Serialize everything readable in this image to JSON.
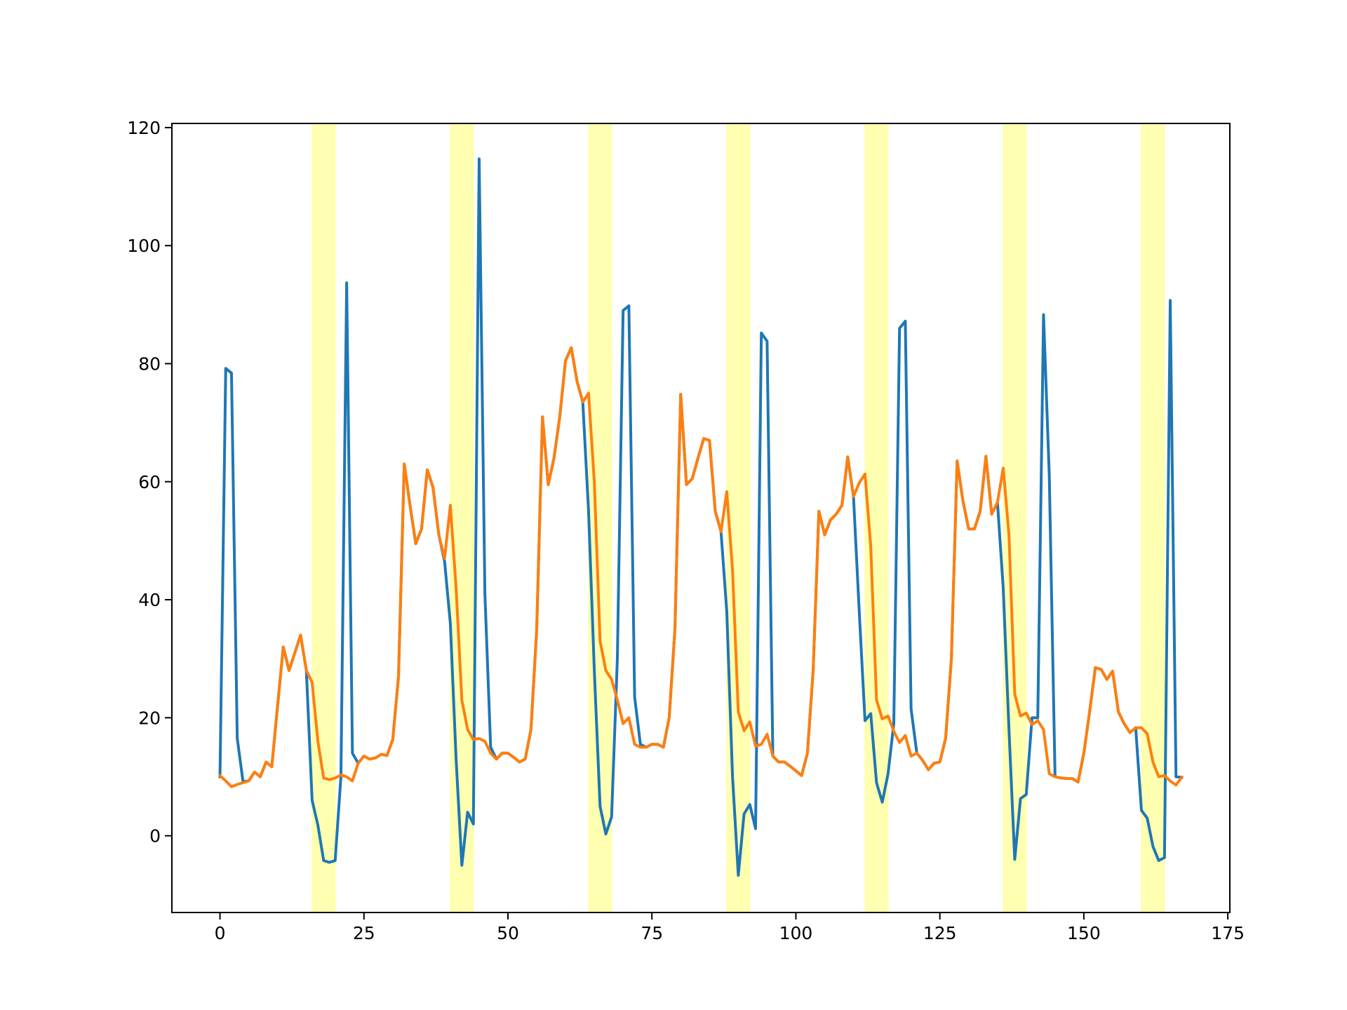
{
  "chart_data": {
    "type": "line",
    "x": [
      0,
      1,
      2,
      3,
      4,
      5,
      6,
      7,
      8,
      9,
      10,
      11,
      12,
      13,
      14,
      15,
      16,
      17,
      18,
      19,
      20,
      21,
      22,
      23,
      24,
      25,
      26,
      27,
      28,
      29,
      30,
      31,
      32,
      33,
      34,
      35,
      36,
      37,
      38,
      39,
      40,
      41,
      42,
      43,
      44,
      45,
      46,
      47,
      48,
      49,
      50,
      51,
      52,
      53,
      54,
      55,
      56,
      57,
      58,
      59,
      60,
      61,
      62,
      63,
      64,
      65,
      66,
      67,
      68,
      69,
      70,
      71,
      72,
      73,
      74,
      75,
      76,
      77,
      78,
      79,
      80,
      81,
      82,
      83,
      84,
      85,
      86,
      87,
      88,
      89,
      90,
      91,
      92,
      93,
      94,
      95,
      96,
      97,
      98,
      99,
      100,
      101,
      102,
      103,
      104,
      105,
      106,
      107,
      108,
      109,
      110,
      111,
      112,
      113,
      114,
      115,
      116,
      117,
      118,
      119,
      120,
      121,
      122,
      123,
      124,
      125,
      126,
      127,
      128,
      129,
      130,
      131,
      132,
      133,
      134,
      135,
      136,
      137,
      138,
      139,
      140,
      141,
      142,
      143,
      144,
      145,
      146,
      147,
      148,
      149,
      150,
      151,
      152,
      153,
      154,
      155,
      156,
      157,
      158,
      159,
      160,
      161,
      162,
      163,
      164,
      165,
      166,
      167
    ],
    "series": [
      {
        "color": "#1f77b4",
        "values": [
          10,
          79.2,
          78.4,
          16.5,
          9.2,
          9.3,
          10.8,
          10.0,
          12.5,
          11.7,
          22,
          32,
          28,
          31,
          34,
          28,
          6,
          1.8,
          -4.2,
          -4.5,
          -4.2,
          10,
          93.7,
          14,
          12.3,
          13.5,
          13.0,
          13.2,
          13.8,
          13.6,
          16.3,
          27,
          63,
          56,
          49.5,
          52,
          62,
          59,
          51,
          46.5,
          36,
          13,
          -5,
          4,
          2,
          114.7,
          41,
          15,
          13,
          14,
          14,
          13.3,
          12.5,
          13,
          18,
          35,
          71,
          59.5,
          64,
          71,
          80.5,
          82.7,
          77,
          73.5,
          55,
          28,
          5,
          0.3,
          3.2,
          30,
          89,
          89.8,
          23.5,
          15.5,
          15,
          15.5,
          15.5,
          15,
          20,
          35,
          74.8,
          59.5,
          60.5,
          64,
          67.3,
          67,
          55,
          51.5,
          38,
          10,
          -6.7,
          3.7,
          5.3,
          1.2,
          85.2,
          83.8,
          13.5,
          12.5,
          12.5,
          11.8,
          11,
          10.2,
          14,
          28,
          55,
          51,
          53.5,
          54.5,
          56,
          64.2,
          57.5,
          38,
          19.5,
          20.7,
          9,
          5.7,
          10.5,
          19,
          86,
          87.2,
          21.5,
          14,
          12.8,
          11.2,
          12.3,
          12.5,
          16.5,
          30,
          63.5,
          56.8,
          52,
          52,
          55,
          64.3,
          54.5,
          56.5,
          42,
          18,
          -4,
          6.3,
          7,
          20,
          20,
          88.3,
          61,
          10,
          9.8,
          9.7,
          9.7,
          9.1,
          14,
          21,
          28.5,
          28.2,
          26.5,
          27.9,
          21,
          19,
          17.5,
          18.3,
          4.3,
          3,
          -1.8,
          -4.2,
          -3.7,
          90.7,
          10,
          9.9
        ]
      },
      {
        "color": "#ff7f0e",
        "values": [
          10.2,
          9.3,
          8.3,
          8.7,
          9.0,
          9.3,
          10.8,
          10.0,
          12.5,
          11.7,
          22,
          32,
          28,
          31,
          34,
          28,
          26,
          16,
          9.8,
          9.5,
          9.8,
          10.3,
          10,
          9.3,
          12.3,
          13.5,
          13.0,
          13.2,
          13.8,
          13.6,
          16.3,
          27,
          63,
          56,
          49.5,
          52,
          62,
          59,
          51,
          47,
          56,
          42,
          23,
          18,
          16.3,
          16.5,
          16,
          14,
          13,
          14,
          14,
          13.3,
          12.5,
          13,
          18,
          35,
          71,
          59.5,
          64,
          71,
          80.5,
          82.7,
          77,
          73.5,
          75,
          60,
          33,
          28,
          26.5,
          23,
          19,
          20,
          15.5,
          15,
          15,
          15.5,
          15.5,
          15,
          20,
          35,
          74.8,
          59.5,
          60.5,
          64,
          67.3,
          67,
          55,
          51.5,
          58.3,
          45,
          21,
          17.8,
          19.3,
          15.2,
          15.5,
          17.2,
          13.5,
          12.5,
          12.5,
          11.8,
          11,
          10.2,
          14,
          28,
          55,
          51,
          53.5,
          54.5,
          56,
          64.2,
          57.5,
          59.8,
          61.3,
          49,
          23,
          19.8,
          20.3,
          17.7,
          15.8,
          17,
          13.5,
          14,
          12.8,
          11.2,
          12.3,
          12.5,
          16.5,
          30,
          63.5,
          56.8,
          52,
          52,
          55,
          64.3,
          54.5,
          56.5,
          62.3,
          51,
          24,
          20.3,
          20.8,
          18.8,
          19.5,
          18,
          10.5,
          10,
          9.8,
          9.7,
          9.7,
          9.1,
          14,
          21,
          28.5,
          28.2,
          26.5,
          27.9,
          21,
          19,
          17.5,
          18.3,
          18.3,
          17.3,
          12.5,
          10,
          10.2,
          9.3,
          8.6,
          9.9
        ]
      }
    ],
    "spans": [
      [
        16,
        20
      ],
      [
        40,
        44
      ],
      [
        64,
        68
      ],
      [
        88,
        92
      ],
      [
        112,
        116
      ],
      [
        136,
        140
      ],
      [
        160,
        164
      ]
    ],
    "span_color": "#ffff00",
    "xlim": [
      -8.35,
      175.35
    ],
    "ylim": [
      -13,
      120.7
    ],
    "xticks": [
      0,
      25,
      50,
      75,
      100,
      125,
      150,
      175
    ],
    "yticks": [
      0,
      20,
      40,
      60,
      80,
      100,
      120
    ]
  }
}
